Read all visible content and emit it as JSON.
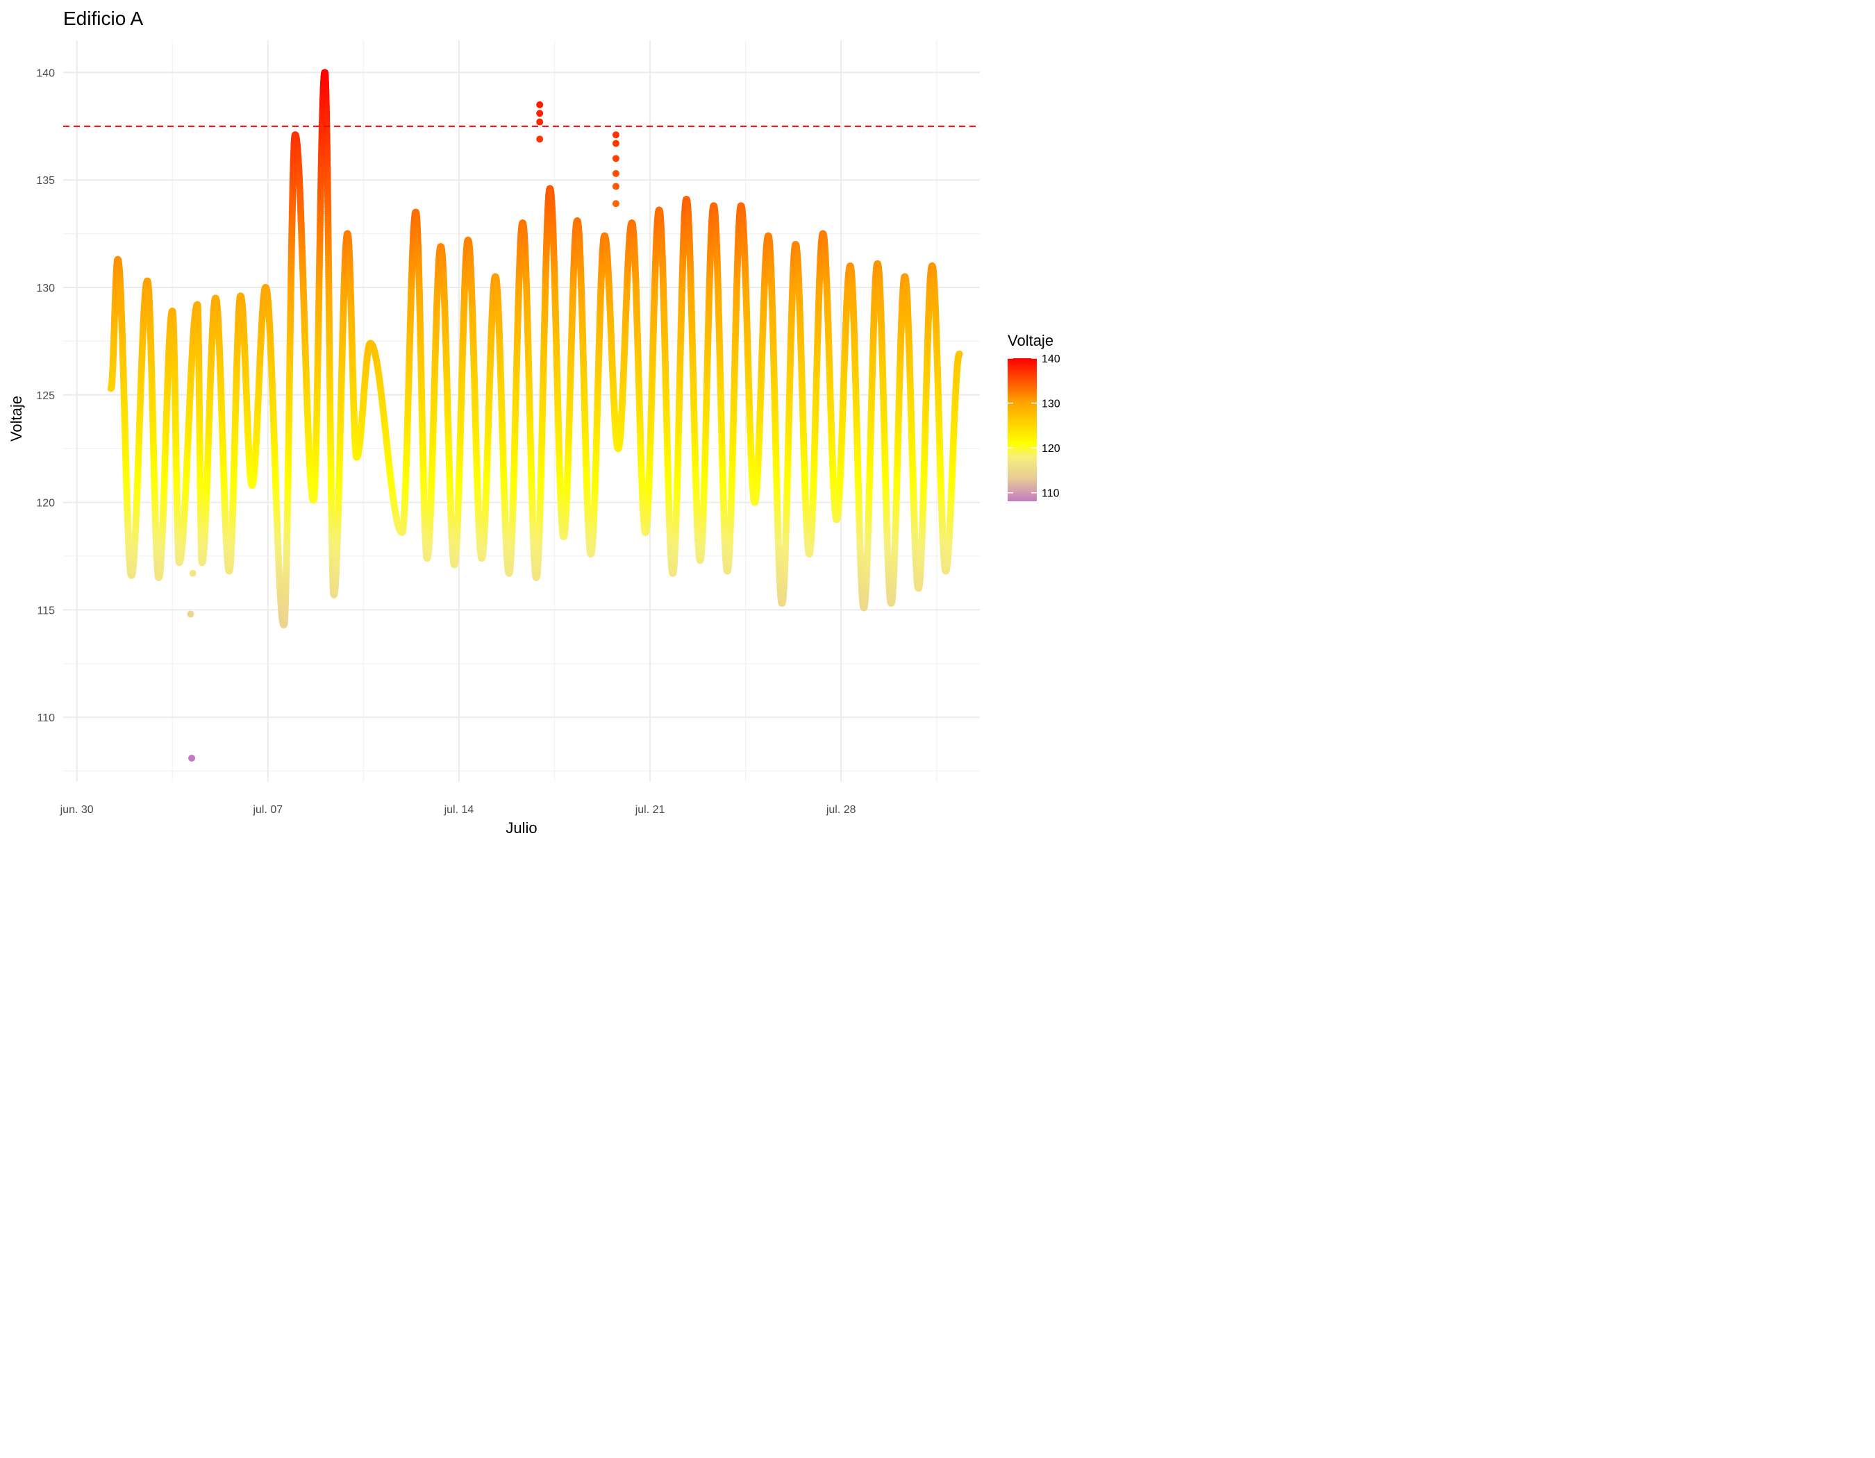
{
  "chart_data": {
    "type": "scatter",
    "title": "Edificio A",
    "xlabel": "Julio",
    "ylabel": "Voltaje",
    "x_axis": {
      "min": "2024-06-29T12:00",
      "max": "2024-08-02T02:00",
      "ticks": [
        {
          "date": "2024-06-30",
          "label": "jun. 30"
        },
        {
          "date": "2024-07-07",
          "label": "jul. 07"
        },
        {
          "date": "2024-07-14",
          "label": "jul. 14"
        },
        {
          "date": "2024-07-21",
          "label": "jul. 21"
        },
        {
          "date": "2024-07-28",
          "label": "jul. 28"
        }
      ],
      "minor_ticks": [
        "2024-07-03T12:00",
        "2024-07-10T12:00",
        "2024-07-17T12:00",
        "2024-07-24T12:00",
        "2024-07-31T12:00"
      ]
    },
    "y_axis": {
      "min": 107,
      "max": 141.5,
      "ticks": [
        110,
        115,
        120,
        125,
        130,
        135,
        140
      ],
      "minor_ticks": [
        107.5,
        112.5,
        117.5,
        122.5,
        127.5,
        132.5,
        137.5
      ]
    },
    "threshold": {
      "value": 137.5,
      "color": "#ff0000",
      "style": "dashed"
    },
    "legend": {
      "title": "Voltaje",
      "position": "right",
      "min": 108.1,
      "max": 140,
      "ticks": [
        110,
        120,
        130,
        140
      ],
      "gradient": [
        {
          "value": 108.1,
          "color": "#c27bc0"
        },
        {
          "value": 113,
          "color": "#e8c898"
        },
        {
          "value": 118,
          "color": "#f7f07a"
        },
        {
          "value": 121,
          "color": "#ffff00"
        },
        {
          "value": 130,
          "color": "#ffa500"
        },
        {
          "value": 140,
          "color": "#ff0000"
        }
      ]
    },
    "series": [
      {
        "x": [
          "2024-07-01T06:00",
          "2024-07-01T12:00",
          "2024-07-02T00:00",
          "2024-07-02T14:00",
          "2024-07-03T00:00",
          "2024-07-03T12:00",
          "2024-07-03T18:00",
          "2024-07-04T10:00",
          "2024-07-04T14:00",
          "2024-07-05T02:00",
          "2024-07-05T14:00",
          "2024-07-06T00:00",
          "2024-07-06T10:00",
          "2024-07-06T22:00",
          "2024-07-07T14:00",
          "2024-07-08T00:00",
          "2024-07-08T16:00",
          "2024-07-09T02:00",
          "2024-07-09T10:00",
          "2024-07-09T22:00",
          "2024-07-10T06:00",
          "2024-07-10T18:00",
          "2024-07-11T22:00",
          "2024-07-12T10:00",
          "2024-07-12T20:00",
          "2024-07-13T08:00",
          "2024-07-13T20:00",
          "2024-07-14T08:00",
          "2024-07-14T20:00",
          "2024-07-15T08:00",
          "2024-07-15T20:00",
          "2024-07-16T08:00",
          "2024-07-16T20:00",
          "2024-07-17T08:00",
          "2024-07-17T20:00",
          "2024-07-18T08:00",
          "2024-07-18T20:00",
          "2024-07-19T08:00",
          "2024-07-19T20:00",
          "2024-07-20T08:00",
          "2024-07-20T20:00",
          "2024-07-21T08:00",
          "2024-07-21T20:00",
          "2024-07-22T08:00",
          "2024-07-22T20:00",
          "2024-07-23T08:00",
          "2024-07-23T20:00",
          "2024-07-24T08:00",
          "2024-07-24T20:00",
          "2024-07-25T08:00",
          "2024-07-25T20:00",
          "2024-07-26T08:00",
          "2024-07-26T20:00",
          "2024-07-27T08:00",
          "2024-07-27T20:00",
          "2024-07-28T08:00",
          "2024-07-28T20:00",
          "2024-07-29T08:00",
          "2024-07-29T20:00",
          "2024-07-30T08:00",
          "2024-07-30T20:00",
          "2024-07-31T08:00",
          "2024-07-31T20:00",
          "2024-08-01T08:00"
        ],
        "values": [
          125.3,
          131.3,
          116.6,
          130.3,
          116.5,
          128.9,
          117.2,
          129.2,
          117.2,
          129.5,
          116.8,
          129.6,
          120.8,
          130.0,
          114.3,
          137.1,
          120.1,
          140.0,
          115.7,
          132.5,
          122.1,
          127.4,
          118.6,
          133.5,
          117.4,
          131.9,
          117.1,
          132.2,
          117.4,
          130.5,
          116.7,
          133.0,
          116.5,
          134.6,
          118.4,
          133.1,
          117.6,
          132.4,
          122.5,
          133.0,
          118.6,
          133.6,
          116.7,
          134.1,
          117.3,
          133.8,
          116.8,
          133.8,
          120.0,
          132.4,
          115.3,
          132.0,
          117.6,
          132.5,
          119.2,
          131.0,
          115.1,
          131.1,
          115.3,
          130.5,
          116.0,
          131.0,
          116.8,
          126.9
        ]
      }
    ],
    "outliers": [
      {
        "x": "2024-07-04T05:00",
        "y": 108.1
      },
      {
        "x": "2024-07-04T04:00",
        "y": 114.8
      },
      {
        "x": "2024-07-04T06:00",
        "y": 116.7
      },
      {
        "x": "2024-07-16T23:00",
        "y": 138.5
      },
      {
        "x": "2024-07-16T23:00",
        "y": 138.1
      },
      {
        "x": "2024-07-16T23:00",
        "y": 137.7
      },
      {
        "x": "2024-07-16T23:00",
        "y": 136.9
      },
      {
        "x": "2024-07-19T18:00",
        "y": 137.1
      },
      {
        "x": "2024-07-19T18:00",
        "y": 136.7
      },
      {
        "x": "2024-07-19T18:00",
        "y": 136.0
      },
      {
        "x": "2024-07-19T18:00",
        "y": 135.3
      },
      {
        "x": "2024-07-19T18:00",
        "y": 134.7
      },
      {
        "x": "2024-07-19T18:00",
        "y": 133.9
      }
    ]
  }
}
